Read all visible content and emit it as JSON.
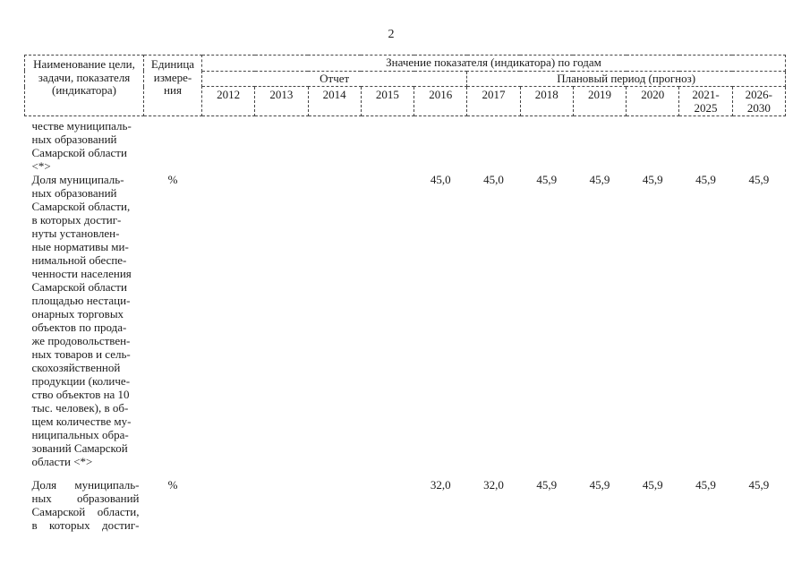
{
  "page_number": "2",
  "table": {
    "header": {
      "name_col_lines": [
        "Наименование цели,",
        "задачи, показателя",
        "(индикатора)"
      ],
      "unit_col_lines": [
        "Единица",
        "измере-",
        "ния"
      ],
      "values_group_label": "Значение показателя (индикатора) по годам",
      "report_label": "Отчет",
      "plan_label": "Плановый период (прогноз)",
      "years": [
        [
          "2012"
        ],
        [
          "2013"
        ],
        [
          "2014"
        ],
        [
          "2015"
        ],
        [
          "2016"
        ],
        [
          "2017"
        ],
        [
          "2018"
        ],
        [
          "2019"
        ],
        [
          "2020"
        ],
        [
          "2021-",
          "2025"
        ],
        [
          "2026-",
          "2030"
        ]
      ]
    },
    "rows": [
      {
        "name_lines": [
          "честве муниципаль-",
          "ных образований",
          "Самарской области",
          "<*>"
        ],
        "unit": "",
        "values": [
          "",
          "",
          "",
          "",
          "",
          "",
          "",
          "",
          "",
          "",
          ""
        ]
      },
      {
        "name_lines": [
          "Доля муниципаль-",
          "ных образований",
          "Самарской области,",
          "в которых достиг-",
          "нуты установлен-",
          "ные нормативы ми-",
          "нимальной обеспе-",
          "ченности населения",
          "Самарской области",
          "площадью нестаци-",
          "онарных торговых",
          "объектов по прода-",
          "же продовольствен-",
          "ных товаров и сель-",
          "скохозяйственной",
          "продукции (количе-",
          "ство объектов на 10",
          "тыс. человек), в об-",
          "щем количестве му-",
          "ниципальных обра-",
          "зований Самарской",
          "области <*>"
        ],
        "unit": "%",
        "values": [
          "",
          "",
          "",
          "",
          "45,0",
          "45,0",
          "45,9",
          "45,9",
          "45,9",
          "45,9",
          "45,9"
        ]
      },
      {
        "name_lines": [
          "Доля муниципаль-",
          "ных образований",
          "Самарской области,",
          "в которых достиг-"
        ],
        "unit": "%",
        "values": [
          "",
          "",
          "",
          "",
          "32,0",
          "32,0",
          "45,9",
          "45,9",
          "45,9",
          "45,9",
          "45,9"
        ]
      }
    ]
  }
}
